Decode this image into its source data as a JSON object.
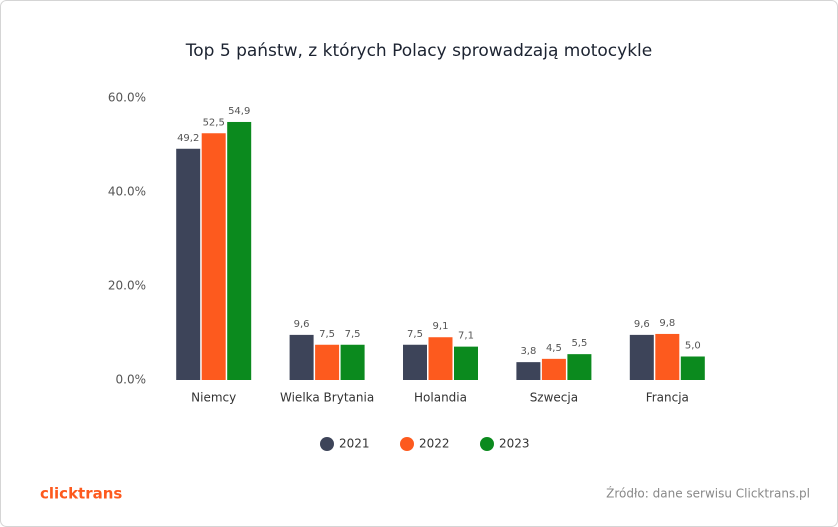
{
  "chart_data": {
    "type": "bar",
    "title": "Top 5 państw, z których Polacy sprowadzają motocykle",
    "categories": [
      "Niemcy",
      "Wielka Brytania",
      "Holandia",
      "Szwecja",
      "Francja"
    ],
    "series": [
      {
        "name": "2021",
        "color": "#3d4459",
        "values": [
          49.2,
          9.6,
          7.5,
          3.8,
          9.6
        ],
        "value_labels": [
          "49,2",
          "9,6",
          "7,5",
          "3,8",
          "9,6"
        ]
      },
      {
        "name": "2022",
        "color": "#fd5a1e",
        "values": [
          52.5,
          7.5,
          9.1,
          4.5,
          9.8
        ],
        "value_labels": [
          "52,5",
          "7,5",
          "9,1",
          "4,5",
          "9,8"
        ]
      },
      {
        "name": "2023",
        "color": "#0b8a1e",
        "values": [
          54.9,
          7.5,
          7.1,
          5.5,
          5.0
        ],
        "value_labels": [
          "54,9",
          "7,5",
          "7,1",
          "5,5",
          "5,0"
        ]
      }
    ],
    "ylim": [
      0,
      60
    ],
    "yticks": [
      {
        "value": 0,
        "label": "0.0%"
      },
      {
        "value": 20,
        "label": "20.0%"
      },
      {
        "value": 40,
        "label": "40.0%"
      },
      {
        "value": 60,
        "label": "60.0%"
      }
    ],
    "grid": false
  },
  "footer": {
    "logo": "clicktrans",
    "source": "Źródło: dane serwisu Clicktrans.pl"
  }
}
